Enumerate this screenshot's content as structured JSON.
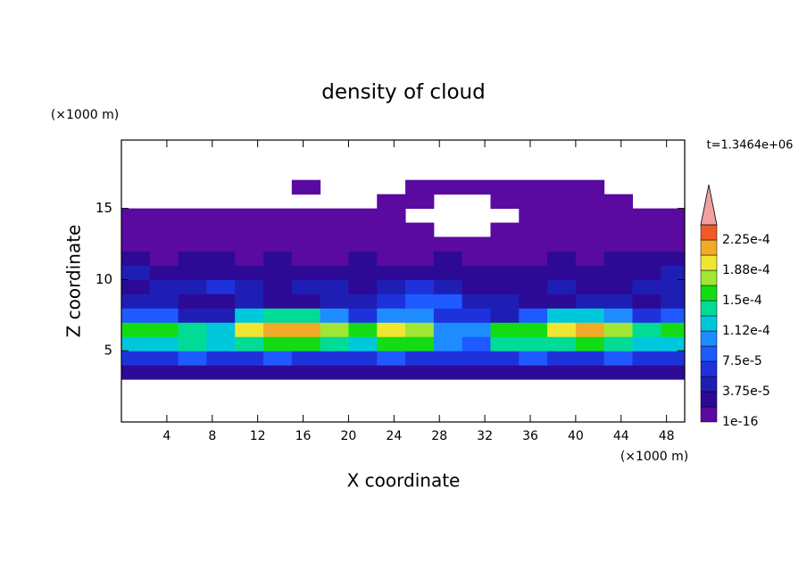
{
  "chart_data": {
    "type": "contour",
    "title": "density of cloud",
    "y_unit": "(×1000 m)",
    "x_unit": "(×1000 m)",
    "xlabel": "X coordinate",
    "ylabel": "Z coordinate",
    "annotation": "t=1.3464e+06",
    "xlim": [
      0,
      49.6
    ],
    "ylim": [
      0,
      19.8
    ],
    "xticks": [
      4,
      8,
      12,
      16,
      20,
      24,
      28,
      32,
      36,
      40,
      44,
      48
    ],
    "yticks": [
      5,
      10,
      15
    ],
    "x_edges": [
      0,
      2.5,
      5,
      7.5,
      10,
      12.5,
      15,
      17.5,
      20,
      22.5,
      25,
      27.5,
      30,
      32.5,
      35,
      37.5,
      40,
      42.5,
      45,
      47.5,
      50
    ],
    "y_edges": [
      3,
      4,
      5,
      6,
      7,
      8,
      9,
      10,
      11,
      12,
      13,
      14,
      15,
      16,
      17
    ],
    "z": [
      [
        3e-05,
        3e-05,
        3e-05,
        3e-05,
        3e-05,
        3e-05,
        3e-05,
        3e-05,
        3e-05,
        3e-05,
        3e-05,
        3e-05,
        3e-05,
        3e-05,
        3e-05,
        3e-05,
        3e-05,
        3e-05,
        3e-05,
        3e-05
      ],
      [
        6.5e-05,
        6.5e-05,
        8e-05,
        6.5e-05,
        6.5e-05,
        8e-05,
        6.5e-05,
        6.5e-05,
        6.5e-05,
        8e-05,
        6.5e-05,
        6.5e-05,
        6.5e-05,
        6.5e-05,
        8e-05,
        6.5e-05,
        6.5e-05,
        8e-05,
        6.5e-05,
        6.5e-05
      ],
      [
        0.00012,
        0.00012,
        0.00014,
        0.00012,
        0.00014,
        0.00016,
        0.00016,
        0.00014,
        0.00012,
        0.00016,
        0.00016,
        0.0001,
        8e-05,
        0.00014,
        0.00014,
        0.00014,
        0.00016,
        0.00014,
        0.00012,
        0.00012
      ],
      [
        0.00016,
        0.00016,
        0.00014,
        0.00012,
        0.000195,
        0.000215,
        0.000215,
        0.000175,
        0.00016,
        0.000195,
        0.000175,
        0.0001,
        0.0001,
        0.00016,
        0.00016,
        0.000195,
        0.000215,
        0.000175,
        0.00014,
        0.00016
      ],
      [
        8e-05,
        8e-05,
        5e-05,
        5e-05,
        0.00012,
        0.00014,
        0.00014,
        0.0001,
        6.5e-05,
        0.0001,
        0.0001,
        6.5e-05,
        6.5e-05,
        5e-05,
        8e-05,
        0.00012,
        0.00012,
        0.0001,
        6.5e-05,
        8e-05
      ],
      [
        5e-05,
        5e-05,
        3e-05,
        3e-05,
        5e-05,
        3e-05,
        3e-05,
        5e-05,
        5e-05,
        6.5e-05,
        8e-05,
        8e-05,
        5e-05,
        5e-05,
        3e-05,
        3e-05,
        5e-05,
        5e-05,
        3e-05,
        5e-05
      ],
      [
        3e-05,
        5e-05,
        5e-05,
        6.5e-05,
        5e-05,
        3e-05,
        5e-05,
        5e-05,
        3e-05,
        5e-05,
        6.5e-05,
        5e-05,
        3e-05,
        3e-05,
        3e-05,
        5e-05,
        3e-05,
        3e-05,
        5e-05,
        5e-05
      ],
      [
        5e-05,
        3e-05,
        3e-05,
        3e-05,
        3e-05,
        3e-05,
        3e-05,
        3e-05,
        3e-05,
        3e-05,
        3e-05,
        3e-05,
        3e-05,
        3e-05,
        3e-05,
        3e-05,
        3e-05,
        3e-05,
        3e-05,
        5e-05
      ],
      [
        3e-05,
        1e-05,
        3e-05,
        3e-05,
        1e-05,
        3e-05,
        1e-05,
        1e-05,
        3e-05,
        1e-05,
        1e-05,
        3e-05,
        1e-05,
        1e-05,
        1e-05,
        3e-05,
        1e-05,
        3e-05,
        3e-05,
        3e-05
      ],
      [
        1e-05,
        1e-05,
        1e-05,
        1e-05,
        1e-05,
        1e-05,
        1e-05,
        1e-05,
        1e-05,
        1e-05,
        1e-05,
        1e-05,
        1e-05,
        1e-05,
        1e-05,
        1e-05,
        1e-05,
        1e-05,
        1e-05,
        1e-05
      ],
      [
        1e-05,
        1e-05,
        1e-05,
        1e-05,
        1e-05,
        1e-05,
        1e-05,
        1e-05,
        1e-05,
        1e-05,
        1e-05,
        null,
        null,
        1e-05,
        1e-05,
        1e-05,
        1e-05,
        1e-05,
        1e-05,
        1e-05
      ],
      [
        1e-05,
        1e-05,
        1e-05,
        1e-05,
        1e-05,
        1e-05,
        1e-05,
        1e-05,
        1e-05,
        1e-05,
        null,
        null,
        null,
        null,
        1e-05,
        1e-05,
        1e-05,
        1e-05,
        1e-05,
        1e-05
      ],
      [
        null,
        null,
        null,
        null,
        null,
        null,
        null,
        null,
        null,
        1e-05,
        1e-05,
        null,
        null,
        1e-05,
        1e-05,
        1e-05,
        1e-05,
        1e-05,
        null,
        null
      ],
      [
        null,
        null,
        null,
        null,
        null,
        null,
        1e-05,
        null,
        null,
        null,
        1e-05,
        1e-05,
        1e-05,
        1e-05,
        1e-05,
        1e-05,
        1e-05,
        null,
        null,
        null
      ]
    ],
    "levels": [
      {
        "value": 1e-16,
        "label": "1e-16"
      },
      1.875e-05,
      {
        "value": 3.75e-05,
        "label": "3.75e-5"
      },
      5.625e-05,
      {
        "value": 7.5e-05,
        "label": "7.5e-5"
      },
      9.375e-05,
      {
        "value": 0.0001125,
        "label": "1.12e-4"
      },
      0.00013125,
      {
        "value": 0.00015,
        "label": "1.5e-4"
      },
      0.00016875,
      {
        "value": 0.0001875,
        "label": "1.88e-4"
      },
      0.00020625,
      {
        "value": 0.000225,
        "label": "2.25e-4"
      },
      0.00024375
    ],
    "colors": [
      "#5a0aa0",
      "#2d0a96",
      "#1e1eb4",
      "#1e32dc",
      "#1e5aff",
      "#1e8cff",
      "#00c8dc",
      "#00dc96",
      "#14dc14",
      "#a0e632",
      "#f0e632",
      "#f0aa28",
      "#f05a28"
    ],
    "extend_color": "#f0a0a0"
  }
}
